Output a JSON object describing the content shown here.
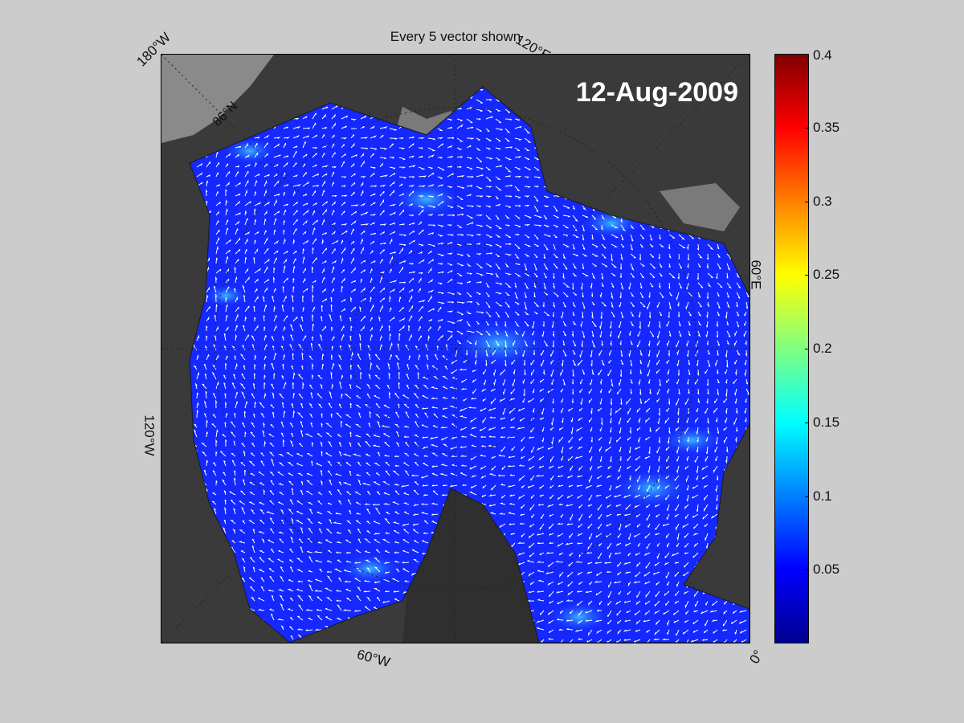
{
  "title": "Every 5 vector shown",
  "date": "12-Aug-2009",
  "longitude_labels": {
    "lon_180w": "180°W",
    "lon_120e": "120°E",
    "lon_60e": "60°E",
    "lon_120w": "120°W",
    "lon_60w": "60°W",
    "lon_0": "0°"
  },
  "latitude_label": "86°N",
  "colorbar": {
    "min": 0,
    "max": 0.4,
    "ticks": [
      "0.05",
      "0.1",
      "0.15",
      "0.2",
      "0.25",
      "0.3",
      "0.35",
      "0.4"
    ],
    "colormap": "jet"
  },
  "colors": {
    "background": "#cccccc",
    "land": "#3a3a3a",
    "ice_shelf": "#8a8a8a",
    "ocean_low": "#1428ff",
    "vector": "#ffffff"
  }
}
